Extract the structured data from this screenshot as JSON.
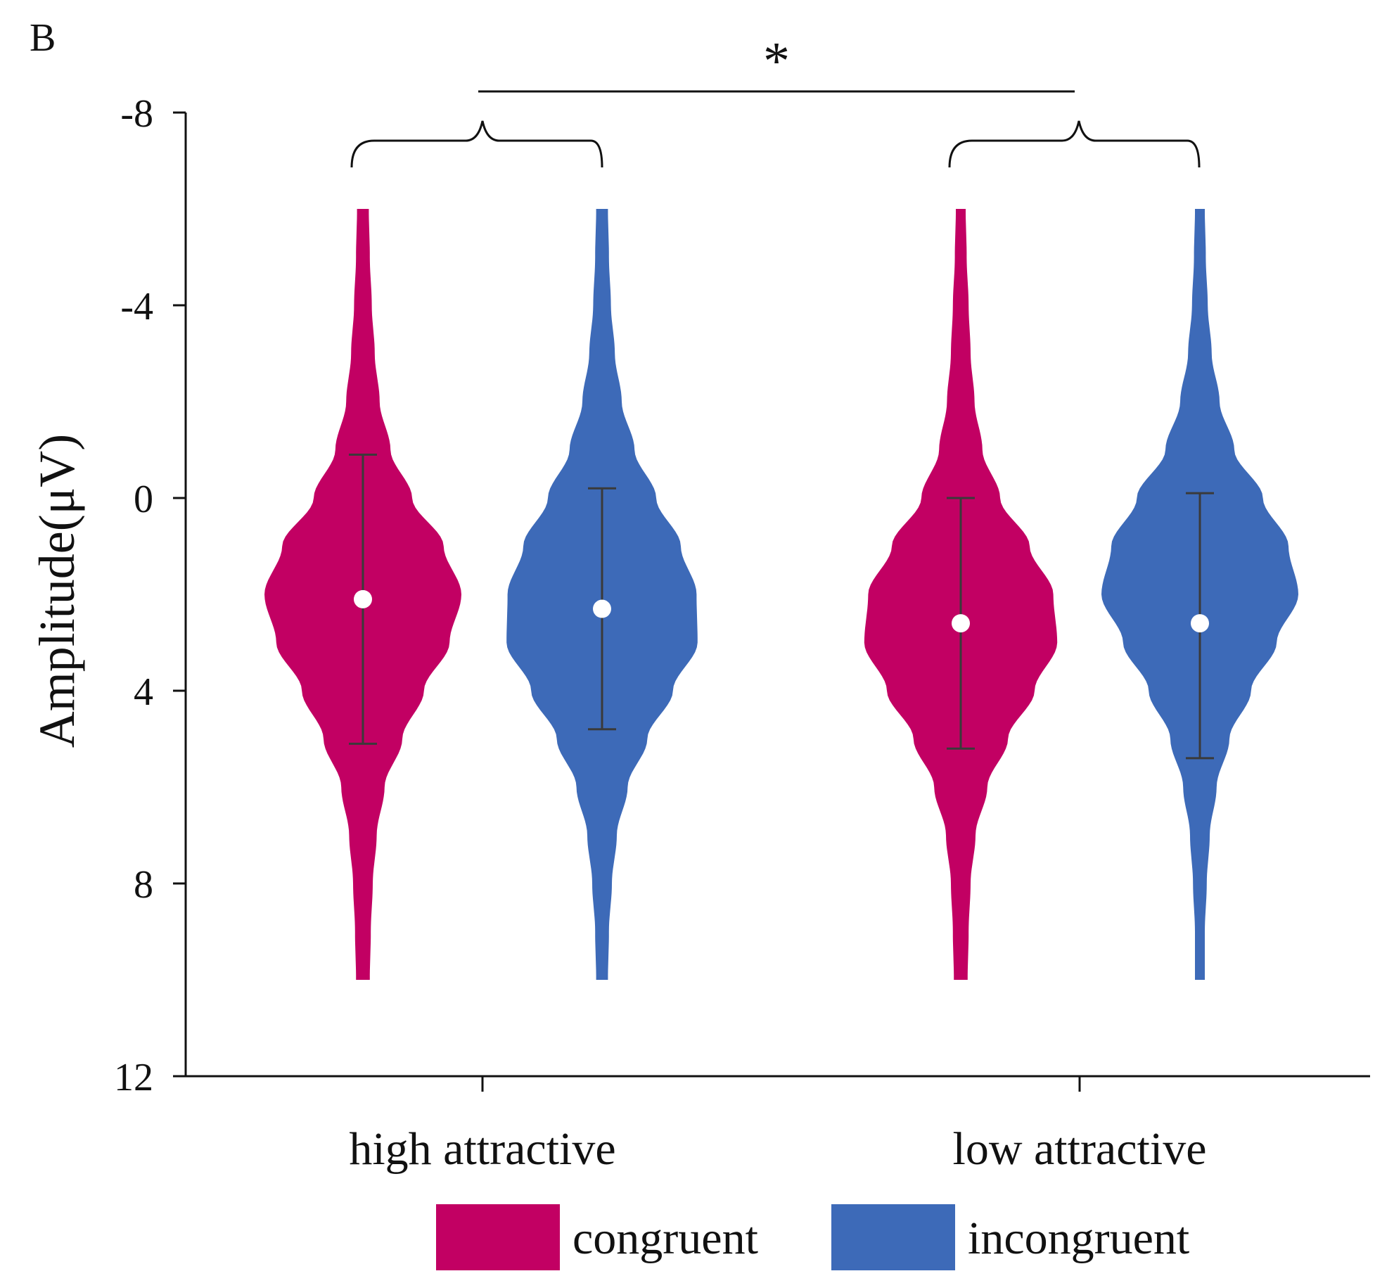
{
  "panel_label": "B",
  "colors": {
    "congruent": "#c20063",
    "incongruent": "#3d6ab8",
    "axis": "#111111",
    "errorbar": "#3a3a3a",
    "mean_marker": "#ffffff"
  },
  "chart_data": {
    "type": "violin",
    "title": "",
    "xlabel": "",
    "ylabel": "Amplitude(μV)",
    "y_axis_inverted": true,
    "ylim": [
      -8,
      12
    ],
    "yticks": [
      "-8",
      "-4",
      "0",
      "4",
      "8",
      "12"
    ],
    "ytick_values": [
      -8,
      -4,
      0,
      4,
      8,
      12
    ],
    "categories": [
      "high attractive",
      "low attractive"
    ],
    "legend": [
      "congruent",
      "incongruent"
    ],
    "legend_position": "bottom",
    "significance": {
      "label": "*",
      "between": [
        "high attractive",
        "low attractive"
      ]
    },
    "violins": [
      {
        "category": "high attractive",
        "series": "congruent",
        "mean": 2.1,
        "error_low": -0.9,
        "error_high": 5.1,
        "range": [
          -6,
          10
        ],
        "mode": 2.2,
        "profile": [
          [
            -6,
            0.06
          ],
          [
            -5,
            0.07
          ],
          [
            -4,
            0.09
          ],
          [
            -3,
            0.12
          ],
          [
            -2,
            0.17
          ],
          [
            -1,
            0.28
          ],
          [
            0,
            0.5
          ],
          [
            1,
            0.82
          ],
          [
            2,
            1.0
          ],
          [
            3,
            0.88
          ],
          [
            4,
            0.62
          ],
          [
            5,
            0.4
          ],
          [
            6,
            0.22
          ],
          [
            7,
            0.14
          ],
          [
            8,
            0.1
          ],
          [
            9,
            0.08
          ],
          [
            10,
            0.07
          ]
        ]
      },
      {
        "category": "high attractive",
        "series": "incongruent",
        "mean": 2.3,
        "error_low": -0.2,
        "error_high": 4.8,
        "range": [
          -6,
          10
        ],
        "mode": 2.6,
        "profile": [
          [
            -6,
            0.06
          ],
          [
            -5,
            0.07
          ],
          [
            -4,
            0.09
          ],
          [
            -3,
            0.13
          ],
          [
            -2,
            0.2
          ],
          [
            -1,
            0.33
          ],
          [
            0,
            0.55
          ],
          [
            1,
            0.8
          ],
          [
            2,
            0.96
          ],
          [
            3,
            0.97
          ],
          [
            4,
            0.72
          ],
          [
            5,
            0.46
          ],
          [
            6,
            0.26
          ],
          [
            7,
            0.15
          ],
          [
            8,
            0.1
          ],
          [
            9,
            0.07
          ],
          [
            10,
            0.06
          ]
        ]
      },
      {
        "category": "low attractive",
        "series": "congruent",
        "mean": 2.6,
        "error_low": 0.0,
        "error_high": 5.2,
        "range": [
          -6,
          10
        ],
        "mode": 2.7,
        "profile": [
          [
            -6,
            0.05
          ],
          [
            -5,
            0.06
          ],
          [
            -4,
            0.08
          ],
          [
            -3,
            0.1
          ],
          [
            -2,
            0.14
          ],
          [
            -1,
            0.22
          ],
          [
            0,
            0.4
          ],
          [
            1,
            0.7
          ],
          [
            2,
            0.94
          ],
          [
            3,
            0.98
          ],
          [
            4,
            0.75
          ],
          [
            5,
            0.48
          ],
          [
            6,
            0.27
          ],
          [
            7,
            0.15
          ],
          [
            8,
            0.1
          ],
          [
            9,
            0.08
          ],
          [
            10,
            0.07
          ]
        ]
      },
      {
        "category": "low attractive",
        "series": "incongruent",
        "mean": 2.6,
        "error_low": -0.1,
        "error_high": 5.4,
        "range": [
          -6,
          10
        ],
        "mode": 2.2,
        "profile": [
          [
            -6,
            0.05
          ],
          [
            -5,
            0.06
          ],
          [
            -4,
            0.08
          ],
          [
            -3,
            0.12
          ],
          [
            -2,
            0.2
          ],
          [
            -1,
            0.35
          ],
          [
            0,
            0.64
          ],
          [
            1,
            0.9
          ],
          [
            2,
            1.0
          ],
          [
            3,
            0.78
          ],
          [
            4,
            0.52
          ],
          [
            5,
            0.3
          ],
          [
            6,
            0.17
          ],
          [
            7,
            0.1
          ],
          [
            8,
            0.07
          ],
          [
            9,
            0.05
          ],
          [
            10,
            0.05
          ]
        ]
      }
    ]
  }
}
